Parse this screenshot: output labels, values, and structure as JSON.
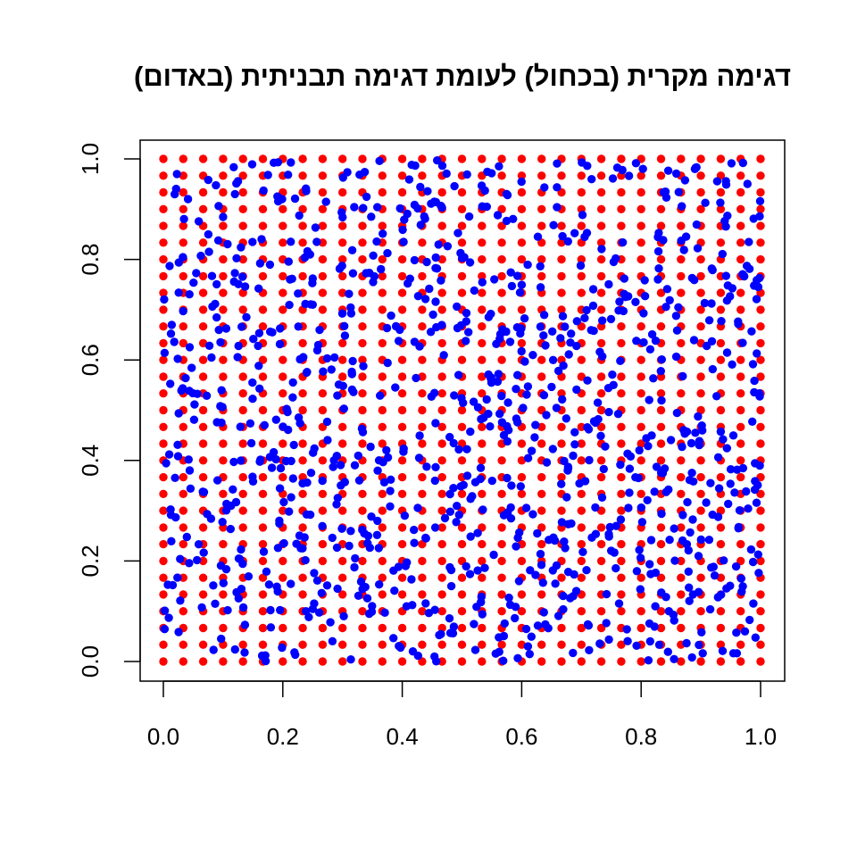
{
  "chart_data": {
    "type": "scatter",
    "title": "דגימה מקרית (בכחול) לעומת דגימה תבניתית (באדום)",
    "xlabel": "",
    "ylabel": "",
    "xlim": [
      0,
      1
    ],
    "ylim": [
      0,
      1
    ],
    "x_ticks": [
      0.0,
      0.2,
      0.4,
      0.6,
      0.8,
      1.0
    ],
    "y_ticks": [
      0.0,
      0.2,
      0.4,
      0.6,
      0.8,
      1.0
    ],
    "x_tick_labels": [
      "0.0",
      "0.2",
      "0.4",
      "0.6",
      "0.8",
      "1.0"
    ],
    "y_tick_labels": [
      "0.0",
      "0.2",
      "0.4",
      "0.6",
      "0.8",
      "1.0"
    ],
    "grid": false,
    "legend": "none",
    "series": [
      {
        "color": "#ff0000",
        "pattern": "regular-grid",
        "grid_step": 0.0333,
        "grid_points_per_axis": 31,
        "count": 961
      },
      {
        "color": "#0000ff",
        "pattern": "uniform-random",
        "approx_count": 1000
      }
    ]
  }
}
